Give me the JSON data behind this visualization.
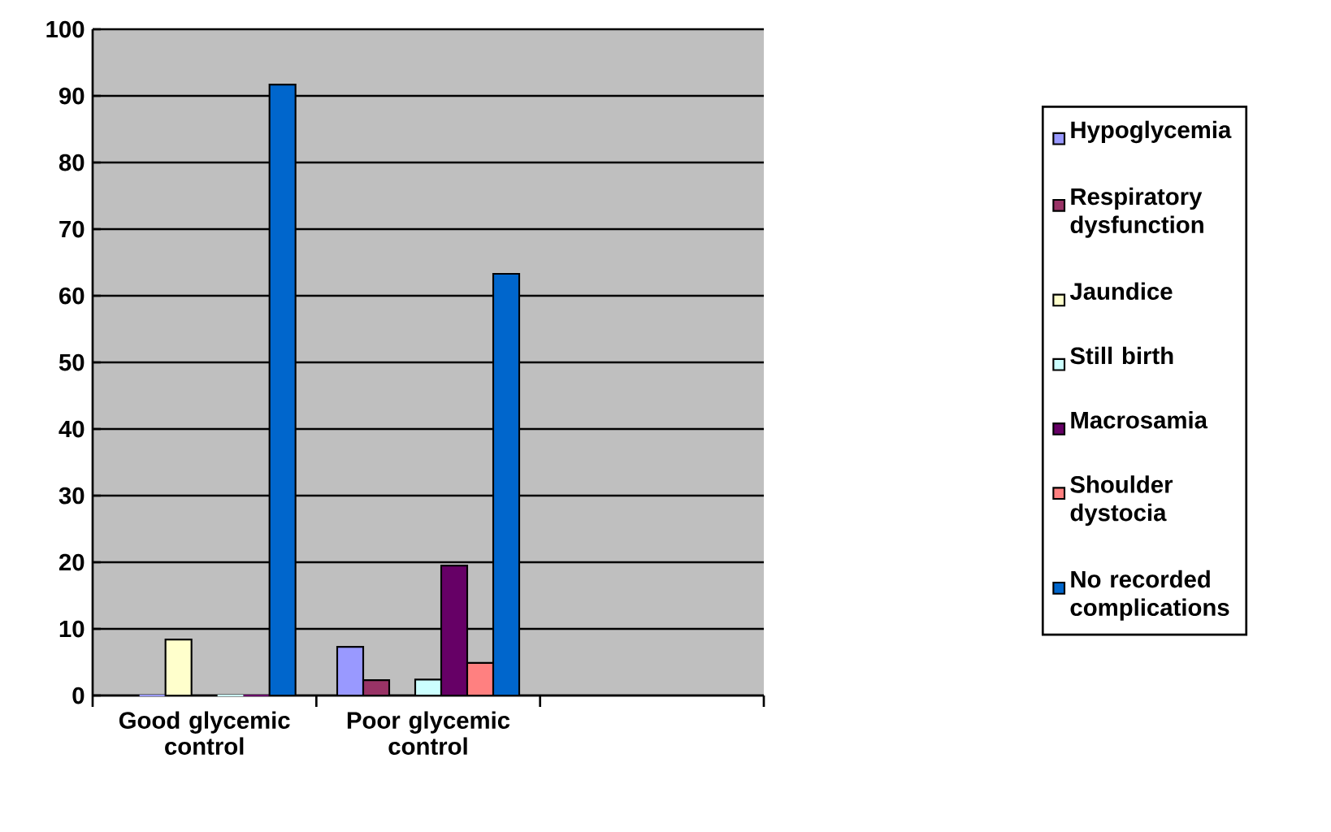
{
  "chart_data": {
    "type": "bar",
    "categories": [
      "Good glycemic control",
      "Poor glycemic control",
      null
    ],
    "series": [
      {
        "name": "Hypoglycemia",
        "color": "#9999ff",
        "values": [
          0,
          7.3,
          null
        ]
      },
      {
        "name": "Respiratory dysfunction",
        "color": "#993366",
        "values": [
          0,
          2.3,
          null
        ]
      },
      {
        "name": "Jaundice",
        "color": "#ffffcc",
        "values": [
          8.4,
          0,
          null
        ]
      },
      {
        "name": "Still birth",
        "color": "#ccffff",
        "values": [
          0,
          2.4,
          null
        ]
      },
      {
        "name": "Macrosamia",
        "color": "#660066",
        "values": [
          0,
          19.5,
          null
        ]
      },
      {
        "name": "Shoulder dystocia",
        "color": "#ff8080",
        "values": [
          0,
          4.9,
          null
        ]
      },
      {
        "name": "No recorded complications",
        "color": "#0066cc",
        "values": [
          91.7,
          63.3,
          null
        ]
      }
    ],
    "ylim": [
      0,
      100
    ],
    "yticks": [
      0,
      10,
      20,
      30,
      40,
      50,
      60,
      70,
      80,
      90,
      100
    ],
    "grid": "y",
    "legend": "right"
  }
}
